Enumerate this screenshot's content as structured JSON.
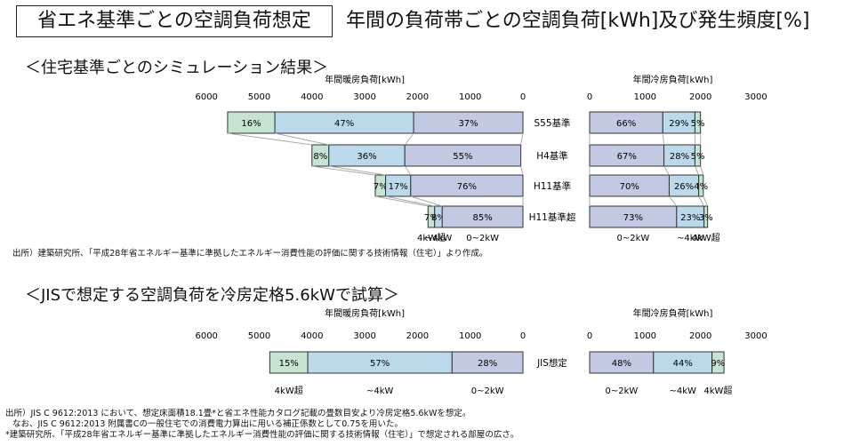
{
  "header": {
    "boxed_title": "省エネ基準ごとの空調負荷想定",
    "main_title": "年間の負荷帯ごとの空調負荷[kWh]及び発生頻度[%]"
  },
  "colors": {
    "high": "#c7e4d2",
    "mid": "#bcd9ec",
    "low": "#c3c9e2",
    "border": "#333333",
    "connector": "#aaaaaa"
  },
  "chart_data": [
    {
      "type": "bar",
      "section_title": "＜住宅基準ごとのシミュレーション結果＞",
      "source": "出所）建築研究所、「平成28年省エネルギー基準に準拠したエネルギー消費性能の評価に関する技術情報（住宅）」より作成。",
      "categories": [
        "S55基準",
        "H4基準",
        "H11基準",
        "H11基準超"
      ],
      "heating": {
        "axis_title": "年間暖房負荷[kWh]",
        "xlim": [
          0,
          6000
        ],
        "ticks": [
          "6000",
          "5000",
          "4000",
          "3000",
          "2000",
          "1000",
          "0"
        ],
        "bottom_labels": [
          "4kW超",
          "~4kW",
          "0~2kW"
        ],
        "totals": [
          5600,
          4000,
          2800,
          1800
        ],
        "segments_pct": [
          [
            16,
            47,
            37
          ],
          [
            8,
            36,
            55
          ],
          [
            7,
            17,
            76
          ],
          [
            7,
            8,
            85
          ]
        ]
      },
      "cooling": {
        "axis_title": "年間冷房負荷[kWh]",
        "xlim": [
          0,
          3000
        ],
        "ticks": [
          "0",
          "1000",
          "2000",
          "3000"
        ],
        "bottom_labels": [
          "0~2kW",
          "~4kW",
          "4kW超"
        ],
        "totals": [
          2000,
          2000,
          2050,
          2150
        ],
        "segments_pct": [
          [
            66,
            29,
            5
          ],
          [
            67,
            28,
            5
          ],
          [
            70,
            26,
            4
          ],
          [
            73,
            23,
            3
          ]
        ]
      }
    },
    {
      "type": "bar",
      "section_title": "＜JISで想定する空調負荷を冷房定格5.6kWで試算＞",
      "source_lines": [
        "出所）JIS C 9612:2013 において、想定床面積18.1畳*と省エネ性能カタログ記載の畳数目安より冷房定格5.6kWを想定。",
        "なお、JIS C 9612:2013 附属書Cの一般住宅での消費電力算出に用いる補正係数として0.75を用いた。",
        "*建築研究所、「平成28年省エネルギー基準に準拠したエネルギー消費性能の評価に関する技術情報（住宅）」で想定される部屋の広さ。"
      ],
      "categories": [
        "JIS想定"
      ],
      "heating": {
        "axis_title": "年間暖房負荷[kWh]",
        "xlim": [
          0,
          6000
        ],
        "ticks": [
          "6000",
          "5000",
          "4000",
          "3000",
          "2000",
          "1000",
          "0"
        ],
        "bottom_labels": [
          "4kW超",
          "~4kW",
          "0~2kW"
        ],
        "totals": [
          4800
        ],
        "segments_pct": [
          [
            15,
            57,
            28
          ]
        ]
      },
      "cooling": {
        "axis_title": "年間冷房負荷[kWh]",
        "xlim": [
          0,
          3000
        ],
        "ticks": [
          "0",
          "1000",
          "2000",
          "3000"
        ],
        "bottom_labels": [
          "0~2kW",
          "~4kW",
          "4kW超"
        ],
        "totals": [
          2400
        ],
        "segments_pct": [
          [
            48,
            44,
            9
          ]
        ]
      }
    }
  ]
}
